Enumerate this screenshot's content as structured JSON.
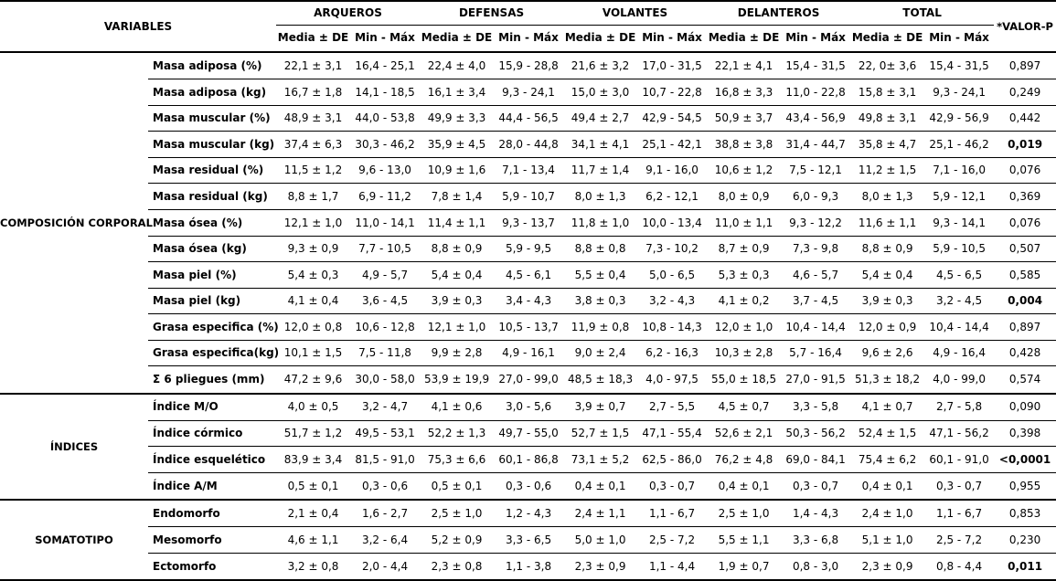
{
  "table": {
    "header": {
      "variables_label": "VARIABLES",
      "groups": [
        "ARQUEROS",
        "DEFENSAS",
        "VOLANTES",
        "DELANTEROS",
        "TOTAL"
      ],
      "sub_mean": "Media ± DE",
      "sub_range": "Min - Máx",
      "pvalue_label": "*VALOR-P"
    },
    "sections": [
      {
        "label": "COMPOSICIÓN CORPORAL",
        "rows": [
          {
            "variable": "Masa adiposa (%)",
            "values": [
              "22,1 ± 3,1",
              "16,4 - 25,1",
              "22,4 ± 4,0",
              "15,9 - 28,8",
              "21,6 ± 3,2",
              "17,0 - 31,5",
              "22,1 ± 4,1",
              "15,4 - 31,5",
              "22, 0± 3,6",
              "15,4 - 31,5"
            ],
            "p": "0,897",
            "p_bold": false
          },
          {
            "variable": "Masa adiposa (kg)",
            "values": [
              "16,7 ± 1,8",
              "14,1 - 18,5",
              "16,1 ± 3,4",
              "9,3 - 24,1",
              "15,0 ± 3,0",
              "10,7 - 22,8",
              "16,8 ± 3,3",
              "11,0 - 22,8",
              "15,8 ± 3,1",
              "9,3 - 24,1"
            ],
            "p": "0,249",
            "p_bold": false
          },
          {
            "variable": "Masa muscular (%)",
            "values": [
              "48,9 ± 3,1",
              "44,0 - 53,8",
              "49,9 ± 3,3",
              "44,4 - 56,5",
              "49,4 ± 2,7",
              "42,9 - 54,5",
              "50,9 ± 3,7",
              "43,4 - 56,9",
              "49,8 ± 3,1",
              "42,9 - 56,9"
            ],
            "p": "0,442",
            "p_bold": false
          },
          {
            "variable": "Masa muscular (kg)",
            "values": [
              "37,4 ± 6,3",
              "30,3 - 46,2",
              "35,9 ± 4,5",
              "28,0 - 44,8",
              "34,1 ± 4,1",
              "25,1 - 42,1",
              "38,8 ± 3,8",
              "31,4 - 44,7",
              "35,8 ± 4,7",
              "25,1 - 46,2"
            ],
            "p": "0,019",
            "p_bold": true
          },
          {
            "variable": "Masa residual (%)",
            "values": [
              "11,5 ± 1,2",
              "9,6 - 13,0",
              "10,9 ± 1,6",
              "7,1 - 13,4",
              "11,7 ± 1,4",
              "9,1 - 16,0",
              "10,6 ± 1,2",
              "7,5 - 12,1",
              "11,2 ± 1,5",
              "7,1 - 16,0"
            ],
            "p": "0,076",
            "p_bold": false
          },
          {
            "variable": "Masa residual (kg)",
            "values": [
              "8,8 ± 1,7",
              "6,9 - 11,2",
              "7,8 ± 1,4",
              "5,9 - 10,7",
              "8,0 ± 1,3",
              "6,2 - 12,1",
              "8,0 ± 0,9",
              "6,0 - 9,3",
              "8,0 ± 1,3",
              "5,9 - 12,1"
            ],
            "p": "0,369",
            "p_bold": false
          },
          {
            "variable": "Masa ósea (%)",
            "values": [
              "12,1 ± 1,0",
              "11,0 - 14,1",
              "11,4 ± 1,1",
              "9,3 - 13,7",
              "11,8 ± 1,0",
              "10,0 - 13,4",
              "11,0 ± 1,1",
              "9,3 - 12,2",
              "11,6 ± 1,1",
              "9,3 - 14,1"
            ],
            "p": "0,076",
            "p_bold": false
          },
          {
            "variable": "Masa ósea (kg)",
            "values": [
              "9,3 ± 0,9",
              "7,7 - 10,5",
              "8,8 ± 0,9",
              "5,9 - 9,5",
              "8,8 ± 0,8",
              "7,3 - 10,2",
              "8,7 ± 0,9",
              "7,3 - 9,8",
              "8,8 ± 0,9",
              "5,9 - 10,5"
            ],
            "p": "0,507",
            "p_bold": false
          },
          {
            "variable": "Masa piel (%)",
            "values": [
              "5,4 ± 0,3",
              "4,9 - 5,7",
              "5,4 ± 0,4",
              "4,5 - 6,1",
              "5,5 ± 0,4",
              "5,0 - 6,5",
              "5,3 ± 0,3",
              "4,6 - 5,7",
              "5,4 ± 0,4",
              "4,5 - 6,5"
            ],
            "p": "0,585",
            "p_bold": false
          },
          {
            "variable": "Masa piel (kg)",
            "values": [
              "4,1 ± 0,4",
              "3,6 - 4,5",
              "3,9 ± 0,3",
              "3,4 - 4,3",
              "3,8 ± 0,3",
              "3,2 - 4,3",
              "4,1 ± 0,2",
              "3,7 - 4,5",
              "3,9 ± 0,3",
              "3,2 - 4,5"
            ],
            "p": "0,004",
            "p_bold": true
          },
          {
            "variable": "Grasa especifica (%)",
            "values": [
              "12,0 ± 0,8",
              "10,6 - 12,8",
              "12,1 ± 1,0",
              "10,5 - 13,7",
              "11,9 ± 0,8",
              "10,8 - 14,3",
              "12,0 ± 1,0",
              "10,4 - 14,4",
              "12,0 ± 0,9",
              "10,4 - 14,4"
            ],
            "p": "0,897",
            "p_bold": false
          },
          {
            "variable": "Grasa especifica(kg)",
            "values": [
              "10,1 ± 1,5",
              "7,5 - 11,8",
              "9,9 ± 2,8",
              "4,9 - 16,1",
              "9,0 ± 2,4",
              "6,2 - 16,3",
              "10,3 ± 2,8",
              "5,7 - 16,4",
              "9,6 ± 2,6",
              "4,9 - 16,4"
            ],
            "p": "0,428",
            "p_bold": false
          },
          {
            "variable": "Σ 6 pliegues (mm)",
            "values": [
              "47,2 ± 9,6",
              "30,0 - 58,0",
              "53,9 ± 19,9",
              "27,0 - 99,0",
              "48,5 ± 18,3",
              "4,0 - 97,5",
              "55,0 ± 18,5",
              "27,0 - 91,5",
              "51,3 ± 18,2",
              "4,0 - 99,0"
            ],
            "p": "0,574",
            "p_bold": false
          }
        ]
      },
      {
        "label": "ÍNDICES",
        "rows": [
          {
            "variable": "Índice M/O",
            "values": [
              "4,0 ± 0,5",
              "3,2 - 4,7",
              "4,1 ± 0,6",
              "3,0 - 5,6",
              "3,9 ± 0,7",
              "2,7 - 5,5",
              "4,5 ± 0,7",
              "3,3 - 5,8",
              "4,1 ± 0,7",
              "2,7 - 5,8"
            ],
            "p": "0,090",
            "p_bold": false
          },
          {
            "variable": "Índice córmico",
            "values": [
              "51,7 ± 1,2",
              "49,5 - 53,1",
              "52,2 ± 1,3",
              "49,7 - 55,0",
              "52,7 ± 1,5",
              "47,1 - 55,4",
              "52,6 ± 2,1",
              "50,3 - 56,2",
              "52,4 ± 1,5",
              "47,1 - 56,2"
            ],
            "p": "0,398",
            "p_bold": false
          },
          {
            "variable": "Índice esquelético",
            "values": [
              "83,9 ± 3,4",
              "81,5 - 91,0",
              "75,3 ± 6,6",
              "60,1 - 86,8",
              "73,1 ± 5,2",
              "62,5 - 86,0",
              "76,2 ± 4,8",
              "69,0 - 84,1",
              "75,4 ± 6,2",
              "60,1 - 91,0"
            ],
            "p": "<0,0001",
            "p_bold": true
          },
          {
            "variable": "Índice A/M",
            "values": [
              "0,5 ± 0,1",
              "0,3 - 0,6",
              "0,5 ± 0,1",
              "0,3 - 0,6",
              "0,4 ± 0,1",
              "0,3 - 0,7",
              "0,4 ± 0,1",
              "0,3 - 0,7",
              "0,4 ± 0,1",
              "0,3 - 0,7"
            ],
            "p": "0,955",
            "p_bold": false
          }
        ]
      },
      {
        "label": "SOMATOTIPO",
        "rows": [
          {
            "variable": "Endomorfo",
            "values": [
              "2,1 ± 0,4",
              "1,6 - 2,7",
              "2,5 ± 1,0",
              "1,2 - 4,3",
              "2,4 ± 1,1",
              "1,1 - 6,7",
              "2,5 ± 1,0",
              "1,4 - 4,3",
              "2,4 ± 1,0",
              "1,1 - 6,7"
            ],
            "p": "0,853",
            "p_bold": false
          },
          {
            "variable": "Mesomorfo",
            "values": [
              "4,6 ± 1,1",
              "3,2 - 6,4",
              "5,2 ± 0,9",
              "3,3 - 6,5",
              "5,0 ± 1,0",
              "2,5 - 7,2",
              "5,5 ± 1,1",
              "3,3 - 6,8",
              "5,1 ± 1,0",
              "2,5 - 7,2"
            ],
            "p": "0,230",
            "p_bold": false
          },
          {
            "variable": "Ectomorfo",
            "values": [
              "3,2 ± 0,8",
              "2,0 - 4,4",
              "2,3 ± 0,8",
              "1,1 - 3,8",
              "2,3 ± 0,9",
              "1,1 - 4,4",
              "1,9 ± 0,7",
              "0,8 - 3,0",
              "2,3 ± 0,9",
              "0,8 - 4,4"
            ],
            "p": "0,011",
            "p_bold": true
          }
        ]
      }
    ]
  }
}
